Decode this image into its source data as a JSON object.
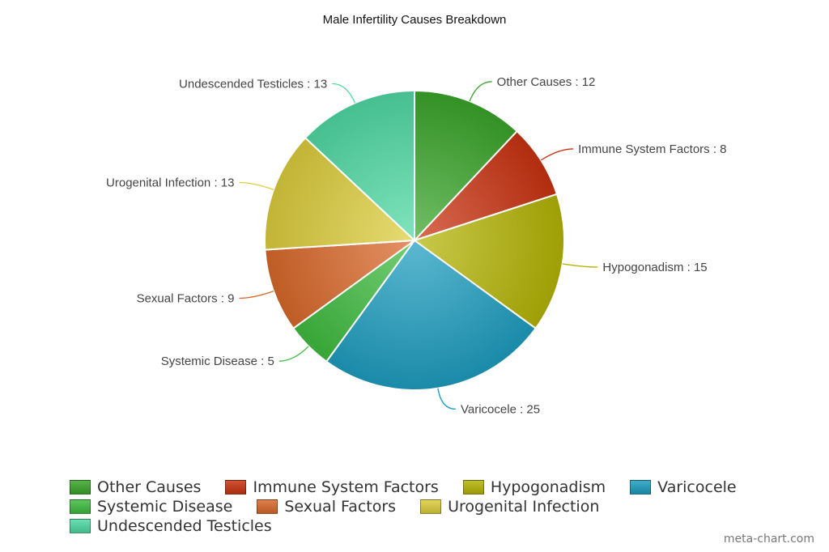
{
  "chart_data": {
    "type": "pie",
    "title": "Male Infertility Causes Breakdown",
    "slices": [
      {
        "label": "Other Causes",
        "value": 12,
        "color": "#3aa52a"
      },
      {
        "label": "Immune System Factors",
        "value": 8,
        "color": "#c93210"
      },
      {
        "label": "Hypogonadism",
        "value": 15,
        "color": "#b4b406"
      },
      {
        "label": "Varicocele",
        "value": 25,
        "color": "#1d9dbf"
      },
      {
        "label": "Systemic Disease",
        "value": 5,
        "color": "#3fbb3f"
      },
      {
        "label": "Sexual Factors",
        "value": 9,
        "color": "#d9682a"
      },
      {
        "label": "Urogenital Infection",
        "value": 13,
        "color": "#dccd3c"
      },
      {
        "label": "Undescended Testicles",
        "value": 13,
        "color": "#4fd9a4"
      }
    ],
    "legend": "bottom"
  },
  "watermark": "meta-chart.com"
}
